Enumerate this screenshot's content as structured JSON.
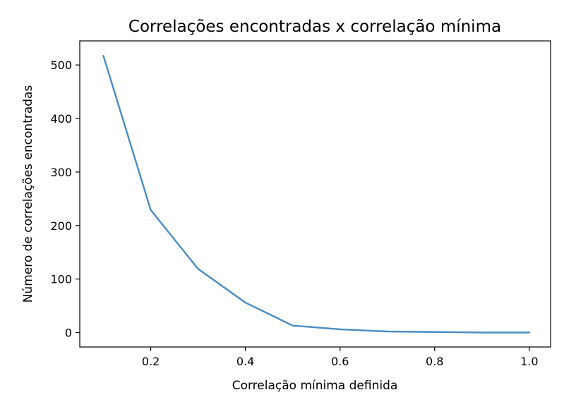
{
  "chart_data": {
    "type": "line",
    "title": "Correlações encontradas x correlação mínima",
    "xlabel": "Correlação mínima definida",
    "ylabel": "Número de correlações encontradas",
    "xlim": [
      0.05,
      1.045
    ],
    "ylim": [
      -27,
      545
    ],
    "xticks": [
      0.2,
      0.4,
      0.6,
      0.8,
      1.0
    ],
    "xtick_labels": [
      "0.2",
      "0.4",
      "0.6",
      "0.8",
      "1.0"
    ],
    "yticks": [
      0,
      100,
      200,
      300,
      400,
      500
    ],
    "ytick_labels": [
      "0",
      "100",
      "200",
      "300",
      "400",
      "500"
    ],
    "grid": false,
    "series": [
      {
        "color": "#4a8cc4",
        "x": [
          0.1,
          0.2,
          0.3,
          0.4,
          0.5,
          0.6,
          0.7,
          0.8,
          0.9,
          1.0
        ],
        "y": [
          517,
          229,
          119,
          56,
          13,
          6,
          2,
          1,
          0,
          0
        ]
      }
    ]
  }
}
